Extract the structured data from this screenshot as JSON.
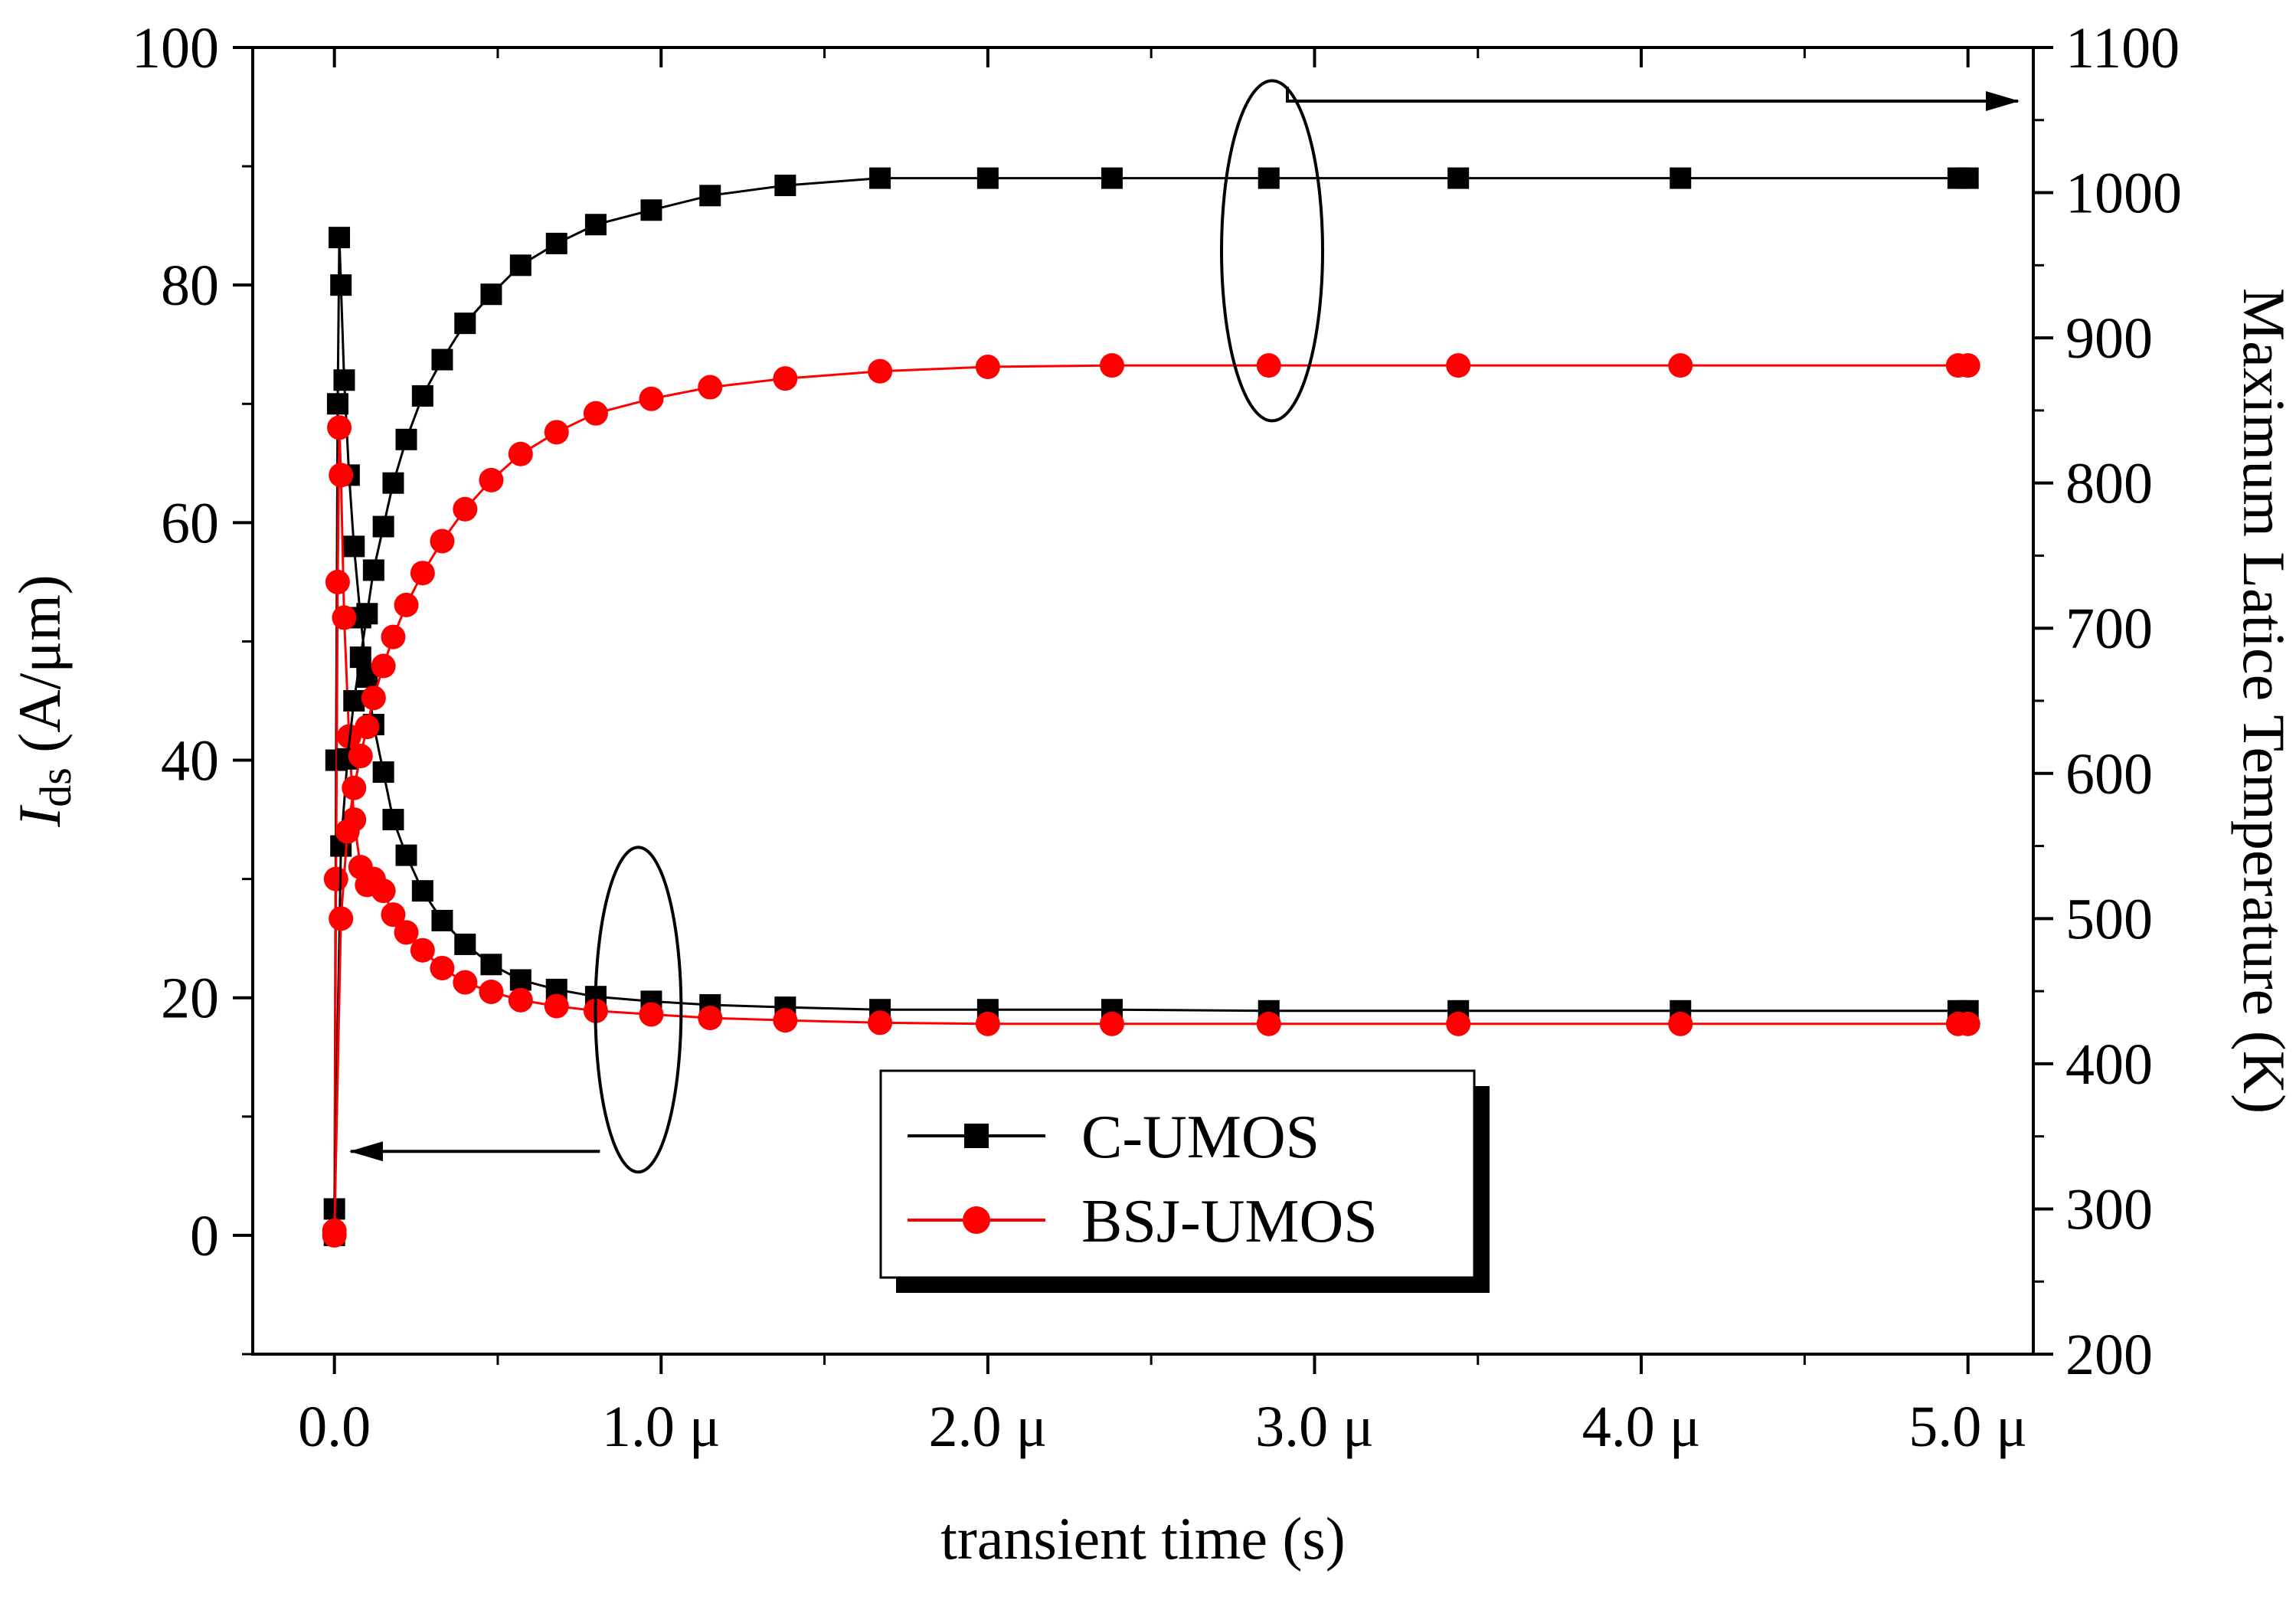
{
  "chart_data": {
    "type": "scatter",
    "title": "",
    "xlabel": "transient time (s)",
    "ylabel_left": {
      "main": "I",
      "subscript": "ds",
      "unit": " (A/μm)"
    },
    "ylabel_right": "Maximum Latice Temperature (K)",
    "x_axis": {
      "range": [
        -0.25,
        5.2
      ],
      "ticks": [
        0,
        1,
        2,
        3,
        4,
        5
      ],
      "tick_labels": [
        "0.0",
        "1.0 μ",
        "2.0 μ",
        "3.0 μ",
        "4.0 μ",
        "5.0 μ"
      ]
    },
    "y_left_axis": {
      "range": [
        -10,
        100
      ],
      "ticks": [
        0,
        20,
        40,
        60,
        80,
        100
      ],
      "tick_labels": [
        "0",
        "20",
        "40",
        "60",
        "80",
        "100"
      ]
    },
    "y_right_axis": {
      "range": [
        200,
        1100
      ],
      "ticks": [
        200,
        300,
        400,
        500,
        600,
        700,
        800,
        900,
        1000,
        1100
      ],
      "tick_labels": [
        "200",
        "300",
        "400",
        "500",
        "600",
        "700",
        "800",
        "900",
        "1000",
        "1100"
      ]
    },
    "legend": {
      "placement": "bottom-center",
      "entries": [
        {
          "label": "C-UMOS",
          "color": "#000000",
          "marker": "square"
        },
        {
          "label": "BSJ-UMOS",
          "color": "#ff0000",
          "marker": "circle"
        }
      ]
    },
    "series": [
      {
        "name": "C-UMOS",
        "quantity": "I_ds",
        "axis": "left",
        "color": "#000000",
        "marker": "square",
        "x": [
          0,
          0.005,
          0.01,
          0.015,
          0.02,
          0.03,
          0.045,
          0.06,
          0.08,
          0.1,
          0.12,
          0.15,
          0.18,
          0.22,
          0.27,
          0.33,
          0.4,
          0.48,
          0.57,
          0.68,
          0.8,
          0.97,
          1.15,
          1.38,
          1.67,
          2.0,
          2.38,
          2.86,
          3.44,
          4.12,
          4.97,
          5.0
        ],
        "y": [
          0,
          40,
          70,
          84,
          80,
          72,
          64,
          58,
          52,
          47,
          43,
          39,
          35,
          32,
          29,
          26.5,
          24.5,
          22.8,
          21.5,
          20.7,
          20.1,
          19.7,
          19.4,
          19.2,
          19.0,
          19.0,
          19.0,
          18.9,
          18.9,
          18.9,
          18.9,
          18.9
        ]
      },
      {
        "name": "BSJ-UMOS",
        "quantity": "I_ds",
        "axis": "left",
        "color": "#ff0000",
        "marker": "circle",
        "x": [
          0,
          0.005,
          0.01,
          0.015,
          0.02,
          0.03,
          0.045,
          0.06,
          0.08,
          0.1,
          0.12,
          0.15,
          0.18,
          0.22,
          0.27,
          0.33,
          0.4,
          0.48,
          0.57,
          0.68,
          0.8,
          0.97,
          1.15,
          1.38,
          1.67,
          2.0,
          2.38,
          2.86,
          3.44,
          4.12,
          4.97,
          5.0
        ],
        "y": [
          0,
          30,
          55,
          68,
          64,
          52,
          42,
          35,
          31,
          29.5,
          30,
          29,
          27,
          25.5,
          24,
          22.5,
          21.3,
          20.5,
          19.8,
          19.3,
          18.9,
          18.6,
          18.3,
          18.1,
          17.9,
          17.8,
          17.8,
          17.8,
          17.8,
          17.8,
          17.8,
          17.8
        ]
      },
      {
        "name": "C-UMOS",
        "quantity": "Maximum Lattice Temperature",
        "axis": "right",
        "color": "#000000",
        "marker": "square",
        "x": [
          0,
          0.02,
          0.04,
          0.06,
          0.08,
          0.1,
          0.12,
          0.15,
          0.18,
          0.22,
          0.27,
          0.33,
          0.4,
          0.48,
          0.57,
          0.68,
          0.8,
          0.97,
          1.15,
          1.38,
          1.67,
          2.0,
          2.38,
          2.86,
          3.44,
          4.12,
          4.97,
          5.0
        ],
        "y": [
          300,
          550,
          610,
          650,
          680,
          710,
          740,
          770,
          800,
          830,
          860,
          885,
          910,
          930,
          950,
          965,
          978,
          988,
          998,
          1005,
          1010,
          1010,
          1010,
          1010,
          1010,
          1010,
          1010,
          1010
        ]
      },
      {
        "name": "BSJ-UMOS",
        "quantity": "Maximum Lattice Temperature",
        "axis": "right",
        "color": "#ff0000",
        "marker": "circle",
        "x": [
          0,
          0.02,
          0.04,
          0.06,
          0.08,
          0.1,
          0.12,
          0.15,
          0.18,
          0.22,
          0.27,
          0.33,
          0.4,
          0.48,
          0.57,
          0.68,
          0.8,
          0.97,
          1.15,
          1.38,
          1.67,
          2.0,
          2.38,
          2.86,
          3.44,
          4.12,
          4.97,
          5.0
        ],
        "y": [
          285,
          500,
          560,
          590,
          612,
          632,
          652,
          674,
          694,
          716,
          738,
          760,
          782,
          802,
          820,
          835,
          848,
          858,
          866,
          872,
          877,
          880,
          881,
          881,
          881,
          881,
          881,
          881
        ]
      }
    ],
    "annotations": [
      {
        "type": "ellipse",
        "encloses": "temperature curves",
        "arrow_to": "right axis",
        "x": 2.87,
        "y_right": 960
      },
      {
        "type": "ellipse",
        "encloses": "current curves",
        "arrow_to": "left axis",
        "x": 0.93,
        "y_left": 19
      }
    ]
  }
}
